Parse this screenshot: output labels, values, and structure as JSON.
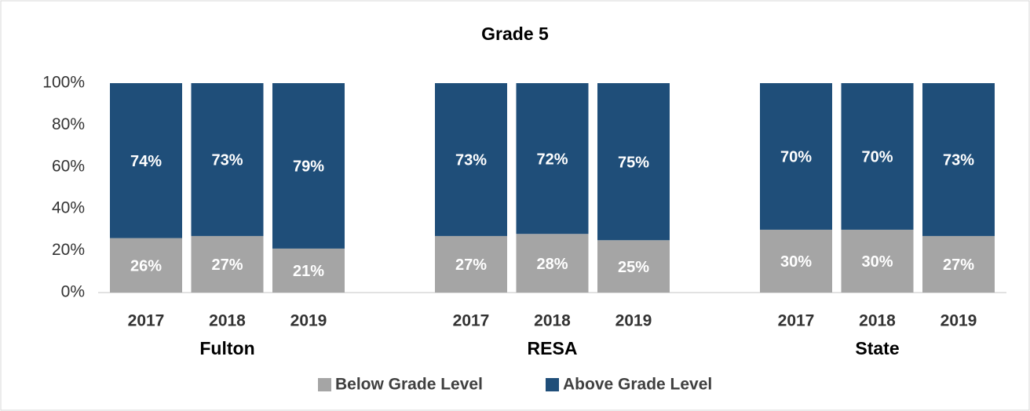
{
  "chart_data": {
    "type": "stacked_bar",
    "title": "Grade 5",
    "categories": [
      "2017",
      "2018",
      "2019",
      "2017",
      "2018",
      "2019",
      "2017",
      "2018",
      "2019"
    ],
    "groups": [
      "Fulton",
      "RESA",
      "State"
    ],
    "series": [
      {
        "name": "Below Grade Level",
        "color": "#a5a5a5",
        "values": [
          26,
          27,
          21,
          27,
          28,
          25,
          30,
          30,
          27
        ],
        "value_labels": [
          "26%",
          "27%",
          "21%",
          "27%",
          "28%",
          "25%",
          "30%",
          "30%",
          "27%"
        ]
      },
      {
        "name": "Above Grade Level",
        "color": "#1f4e79",
        "values": [
          74,
          73,
          79,
          73,
          72,
          75,
          70,
          70,
          73
        ],
        "value_labels": [
          "74%",
          "73%",
          "79%",
          "73%",
          "72%",
          "75%",
          "70%",
          "70%",
          "73%"
        ]
      }
    ],
    "ylim": [
      0,
      100
    ],
    "yticks": [
      {
        "value": 0,
        "label": "0%"
      },
      {
        "value": 20,
        "label": "20%"
      },
      {
        "value": 40,
        "label": "40%"
      },
      {
        "value": 60,
        "label": "60%"
      },
      {
        "value": 80,
        "label": "80%"
      },
      {
        "value": 100,
        "label": "100%"
      }
    ],
    "legend": "bottom"
  }
}
